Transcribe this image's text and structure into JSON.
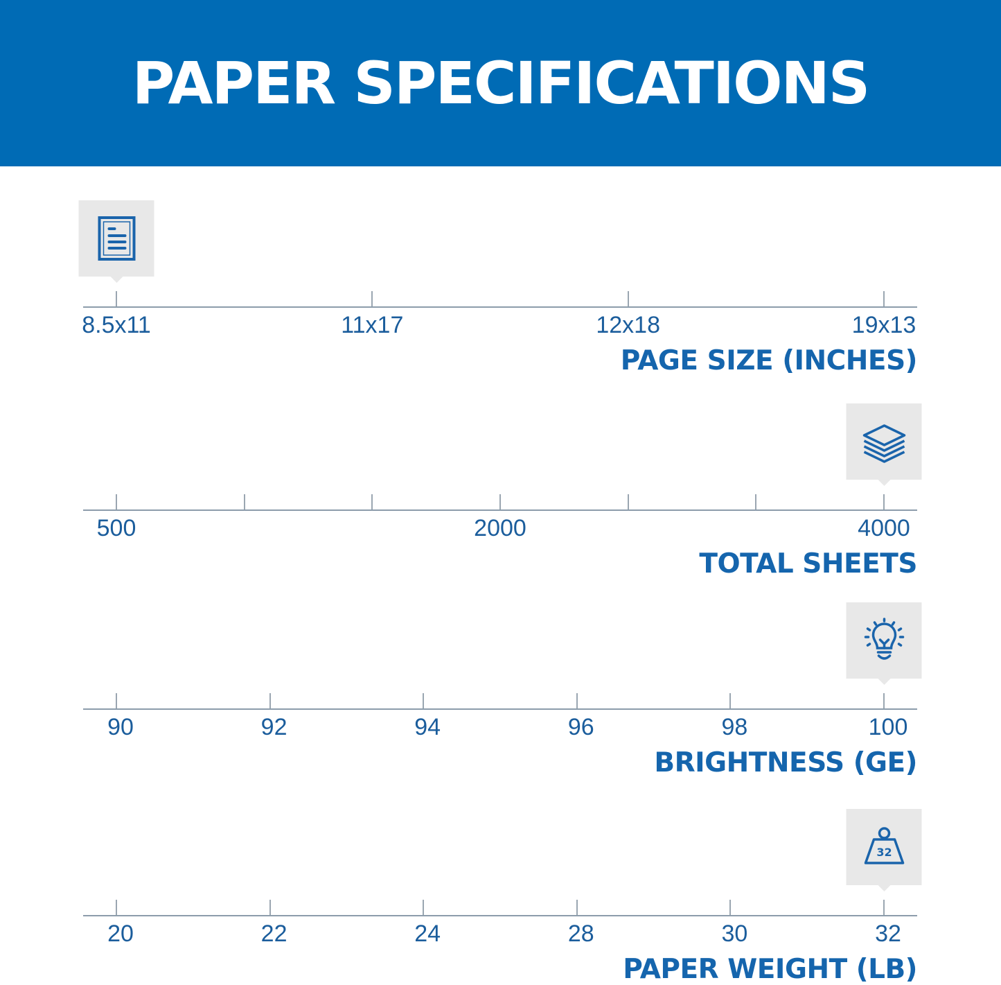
{
  "header": {
    "title": "PAPER SPECIFICATIONS"
  },
  "colors": {
    "banner": "#006bb5",
    "accent": "#1565ad",
    "icon_bg": "#e8e8e8",
    "axis": "#8c9cab"
  },
  "scales": [
    {
      "title": "PAGE SIZE (INCHES)",
      "icon": "document-icon",
      "ticks": [
        "8.5x11",
        "11x17",
        "12x18",
        "19x13"
      ],
      "selected": "8.5x11",
      "selected_index": 0
    },
    {
      "title": "TOTAL SHEETS",
      "icon": "paper-stack-icon",
      "ticks": [
        "500",
        "",
        "",
        "2000",
        "",
        "",
        "4000"
      ],
      "selected": "4000",
      "selected_index": 6
    },
    {
      "title": "BRIGHTNESS (GE)",
      "icon": "lightbulb-icon",
      "ticks": [
        "90",
        "92",
        "94",
        "96",
        "98",
        "100"
      ],
      "selected": "100",
      "selected_index": 5
    },
    {
      "title": "PAPER WEIGHT (LB)",
      "icon": "weight-icon",
      "icon_text": "32",
      "ticks": [
        "20",
        "22",
        "24",
        "28",
        "30",
        "32"
      ],
      "selected": "32",
      "selected_index": 5
    }
  ]
}
